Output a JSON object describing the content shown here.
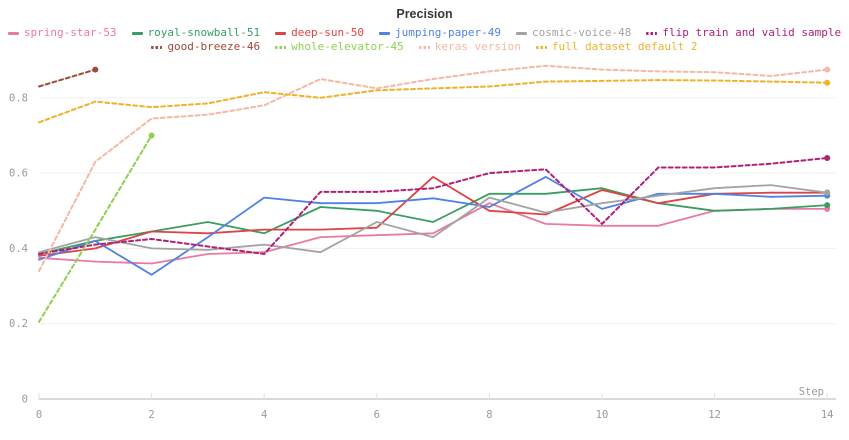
{
  "title": "Precision",
  "axis": {
    "x_label": "Step",
    "x_ticks": [
      0,
      2,
      4,
      6,
      8,
      10,
      12,
      14
    ],
    "y_ticks": [
      0,
      0.2,
      0.4,
      0.6,
      0.8
    ],
    "x_range": [
      0,
      14
    ],
    "y_range": [
      0,
      0.9
    ],
    "grid": true,
    "tick_color": "#9a9a9a",
    "grid_color": "#f0f0f0",
    "axis_line_color": "#d9d9d9"
  },
  "legend": {
    "position": "top",
    "rows": [
      [
        0,
        1,
        2,
        3,
        4,
        5
      ],
      [
        6,
        7,
        8,
        9
      ]
    ]
  },
  "chart_data": {
    "type": "line",
    "x": [
      0,
      1,
      2,
      3,
      4,
      5,
      6,
      7,
      8,
      9,
      10,
      11,
      12,
      13,
      14
    ],
    "series": [
      {
        "name": "spring-star-53",
        "color": "#e87b9f",
        "dashed": false,
        "values": [
          0.375,
          0.365,
          0.36,
          0.385,
          0.39,
          0.43,
          0.435,
          0.44,
          0.52,
          0.465,
          0.46,
          0.46,
          0.5,
          0.505,
          0.505
        ]
      },
      {
        "name": "royal-snowball-51",
        "color": "#3a9e63",
        "dashed": false,
        "values": [
          0.385,
          0.42,
          0.445,
          0.47,
          0.44,
          0.51,
          0.5,
          0.47,
          0.545,
          0.545,
          0.56,
          0.52,
          0.5,
          0.505,
          0.515
        ]
      },
      {
        "name": "deep-sun-50",
        "color": "#dd4444",
        "dashed": false,
        "values": [
          0.38,
          0.4,
          0.445,
          0.44,
          0.45,
          0.45,
          0.455,
          0.59,
          0.5,
          0.49,
          0.555,
          0.52,
          0.545,
          0.548,
          0.548
        ]
      },
      {
        "name": "jumping-paper-49",
        "color": "#4f83e3",
        "dashed": false,
        "values": [
          0.37,
          0.42,
          0.33,
          0.43,
          0.535,
          0.52,
          0.52,
          0.533,
          0.51,
          0.59,
          0.505,
          0.545,
          0.545,
          0.537,
          0.54
        ]
      },
      {
        "name": "cosmic-voice-48",
        "color": "#a3a3a3",
        "dashed": false,
        "values": [
          0.39,
          0.43,
          0.4,
          0.396,
          0.41,
          0.39,
          0.47,
          0.43,
          0.535,
          0.495,
          0.52,
          0.54,
          0.56,
          0.568,
          0.548
        ]
      },
      {
        "name": "flip train and valid sample",
        "color": "#b11f77",
        "dashed": true,
        "values": [
          0.385,
          0.41,
          0.425,
          0.405,
          0.385,
          0.55,
          0.55,
          0.56,
          0.6,
          0.61,
          0.465,
          0.615,
          0.615,
          0.625,
          0.64
        ]
      },
      {
        "name": "good-breeze-46",
        "color": "#9d4a38",
        "dashed": true,
        "values": [
          0.83,
          0.875,
          null,
          null,
          null,
          null,
          null,
          null,
          null,
          null,
          null,
          null,
          null,
          null,
          null
        ]
      },
      {
        "name": "whole-elevator-45",
        "color": "#8fcf55",
        "dashed": true,
        "values": [
          0.205,
          0.45,
          0.7,
          null,
          null,
          null,
          null,
          null,
          null,
          null,
          null,
          null,
          null,
          null,
          null
        ]
      },
      {
        "name": "keras version",
        "color": "#f4b8a4",
        "dashed": true,
        "values": [
          0.34,
          0.63,
          0.745,
          0.755,
          0.78,
          0.85,
          0.825,
          0.85,
          0.87,
          0.885,
          0.875,
          0.87,
          0.868,
          0.858,
          0.875
        ]
      },
      {
        "name": "full dataset default 2",
        "color": "#eeb32b",
        "dashed": true,
        "values": [
          0.735,
          0.79,
          0.775,
          0.785,
          0.815,
          0.8,
          0.82,
          0.825,
          0.83,
          0.843,
          0.845,
          0.847,
          0.846,
          0.843,
          0.84
        ]
      }
    ],
    "title": "Precision",
    "xlabel": "Step",
    "ylabel": "",
    "legend_position": "top",
    "end_point_dots": true
  }
}
